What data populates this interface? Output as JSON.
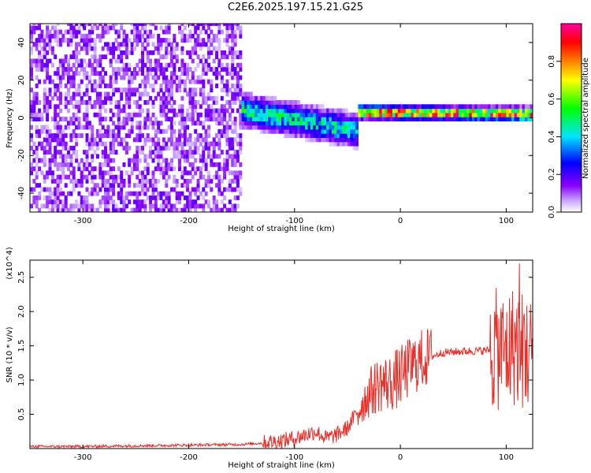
{
  "title": "C2E6.2025.197.15.21.G25",
  "colors": {
    "axis": "#000000",
    "snr_line": "#e8302a",
    "colorbar": [
      "#ffffff",
      "#8a00ff",
      "#0000ff",
      "#00e5ff",
      "#00ff00",
      "#ffff00",
      "#ff7f00",
      "#ff0000",
      "#ff00a0"
    ]
  },
  "chart_data": [
    {
      "type": "heatmap",
      "title": "C2E6.2025.197.15.21.G25",
      "xlabel": "Height of straight line (km)",
      "ylabel": "Frequency (Hz)",
      "xlim": [
        -350,
        125
      ],
      "ylim": [
        -50,
        50
      ],
      "x_ticks": [
        -300,
        -200,
        -100,
        0,
        100
      ],
      "y_ticks": [
        -40,
        -20,
        0,
        20,
        40
      ],
      "colorbar": {
        "label": "Normalized spectral amplitude",
        "range": [
          0,
          1
        ],
        "ticks": [
          "0.0",
          "0.2",
          "0.4",
          "0.6",
          "0.8"
        ]
      },
      "regions": [
        {
          "x_range": [
            -350,
            -150
          ],
          "freq_range": [
            -50,
            50
          ],
          "amplitude": 0.1,
          "description": "noise"
        },
        {
          "x_range": [
            -150,
            -40
          ],
          "freq_center": [
            3,
            -8
          ],
          "freq_halfwidth": 6,
          "amplitude": 0.45
        },
        {
          "x_range": [
            -40,
            125
          ],
          "freq_center": [
            2,
            1
          ],
          "freq_halfwidth": 2.5,
          "amplitude": 0.85
        }
      ]
    },
    {
      "type": "line",
      "xlabel": "Height of straight line (km)",
      "ylabel": "SNR (10 * v/v)",
      "y_scale_label": "(x10^4)",
      "y_multiplier": "10^4",
      "xlim": [
        -350,
        125
      ],
      "ylim": [
        0,
        2.75
      ],
      "x_ticks": [
        -300,
        -200,
        -100,
        0,
        100
      ],
      "y_ticks": [
        0.5,
        1.0,
        1.5,
        2.0,
        2.5
      ],
      "y_tick_labels": [
        "0.5",
        "1.0",
        "1.5",
        "2.0",
        "2.5"
      ],
      "series": [
        {
          "x": [
            -350,
            -300,
            -250,
            -200,
            -150,
            -130,
            -110,
            -100,
            -90,
            -80,
            -70,
            -60,
            -50,
            -40,
            -30,
            -20,
            -10,
            0,
            10,
            20,
            30,
            40,
            60,
            80,
            90,
            100,
            105,
            110,
            115,
            120,
            125
          ],
          "y": [
            0.03,
            0.03,
            0.04,
            0.05,
            0.06,
            0.08,
            0.12,
            0.15,
            0.2,
            0.25,
            0.15,
            0.2,
            0.3,
            0.55,
            0.8,
            0.95,
            0.95,
            1.05,
            1.2,
            1.3,
            1.35,
            1.4,
            1.42,
            1.43,
            1.45,
            1.4,
            1.5,
            1.5,
            1.45,
            1.4,
            1.38
          ]
        }
      ]
    }
  ]
}
